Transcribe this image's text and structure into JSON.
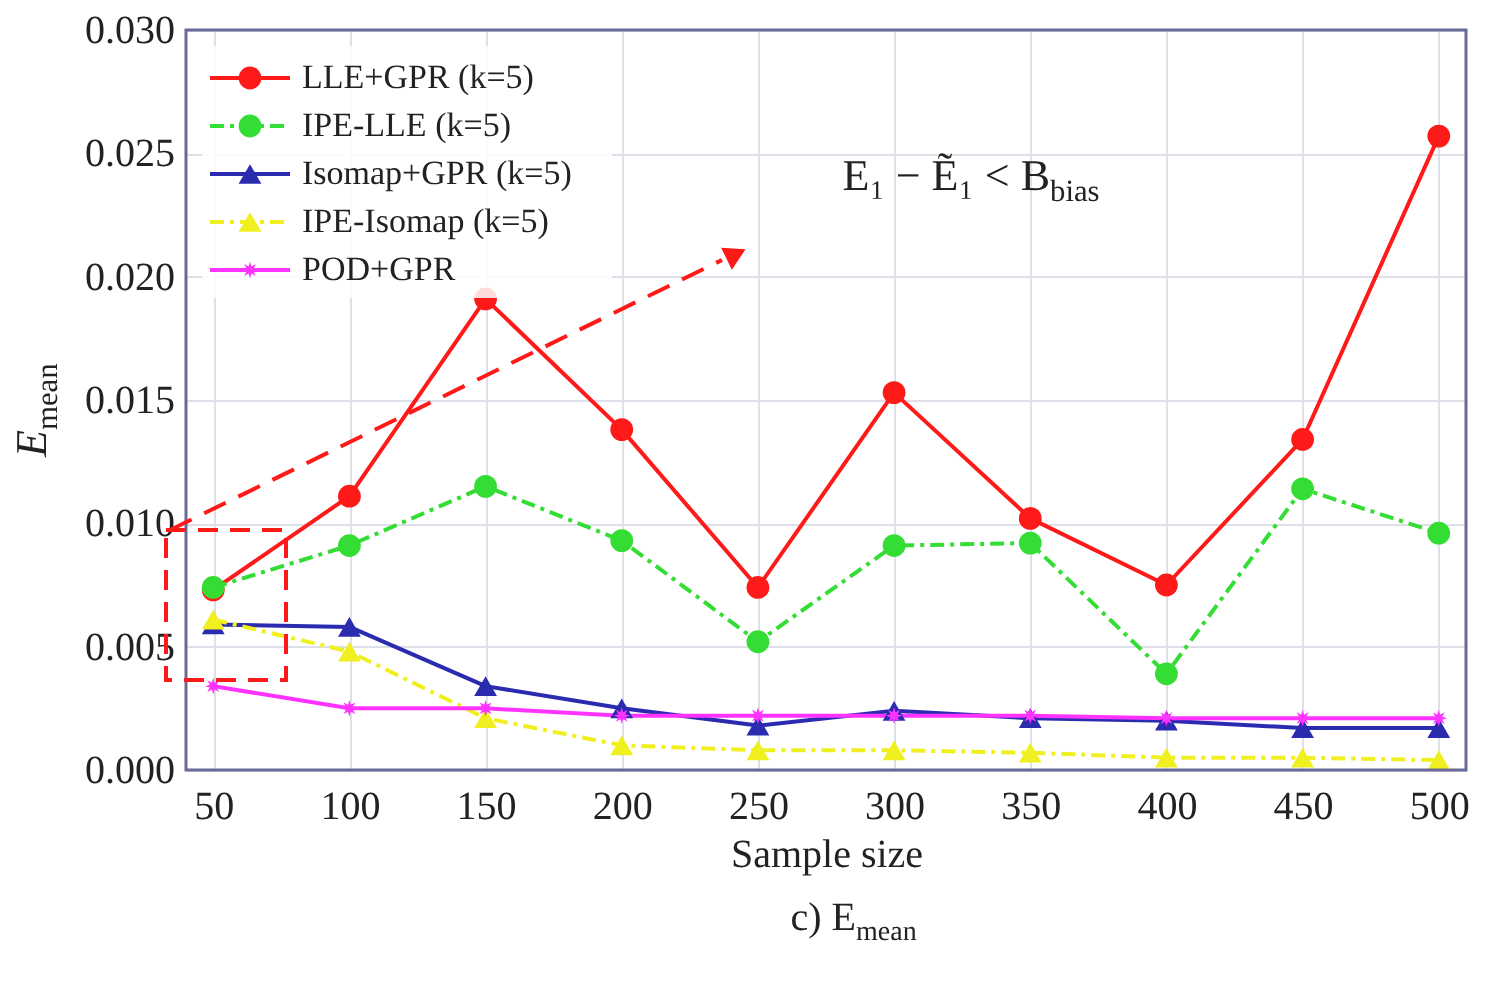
{
  "chart_data": {
    "type": "line",
    "xlabel": "Sample size",
    "ylabel": "E$_{mean}$",
    "x": [
      50,
      100,
      150,
      200,
      250,
      300,
      350,
      400,
      450,
      500
    ],
    "xlim": [
      40,
      510
    ],
    "xticks": [
      50,
      100,
      150,
      200,
      250,
      300,
      350,
      400,
      450,
      500
    ],
    "ylim": [
      0,
      0.03
    ],
    "yticks": [
      {
        "value": 0,
        "label": "0.000"
      },
      {
        "value": 0.005,
        "label": "0.005"
      },
      {
        "value": 0.01,
        "label": "0.010"
      },
      {
        "value": 0.015,
        "label": "0.015"
      },
      {
        "value": 0.02,
        "label": "0.020"
      },
      {
        "value": 0.025,
        "label": "0.025"
      },
      {
        "value": 0.03,
        "label": "0.030"
      }
    ],
    "grid": true,
    "legend": "top left",
    "series": [
      {
        "name": "LLE+GPR (k=5)",
        "color": "#ff1a1a",
        "marker": "circle",
        "line_style": "solid",
        "values": [
          0.0073,
          0.0111,
          0.0191,
          0.0138,
          0.0074,
          0.0153,
          0.0102,
          0.0075,
          0.0134,
          0.0257
        ]
      },
      {
        "name": "IPE-LLE (k=5)",
        "color": "#33dd33",
        "marker": "circle",
        "line_style": "dashed",
        "values": [
          0.0074,
          0.0091,
          0.0115,
          0.0093,
          0.0052,
          0.0091,
          0.0092,
          0.0039,
          0.0114,
          0.0096
        ]
      },
      {
        "name": "Isomap+GPR (k=5)",
        "color": "#2b2bb0",
        "marker": "triangle",
        "line_style": "solid",
        "values": [
          0.0059,
          0.0058,
          0.0034,
          0.0025,
          0.0018,
          0.0024,
          0.0021,
          0.002,
          0.0017,
          0.0017
        ]
      },
      {
        "name": "IPE-Isomap (k=5)",
        "color": "#f0f020",
        "marker": "triangle",
        "line_style": "dashed",
        "values": [
          0.0061,
          0.0048,
          0.0021,
          0.001,
          0.0008,
          0.0008,
          0.0007,
          0.0005,
          0.0005,
          0.0004
        ]
      },
      {
        "name": "POD+GPR",
        "color": "#ff33ff",
        "marker": "star",
        "line_style": "solid",
        "values": [
          0.0034,
          0.0025,
          0.0025,
          0.0022,
          0.0022,
          0.0022,
          0.0022,
          0.0021,
          0.0021,
          0.0021
        ]
      }
    ],
    "annotations": [
      "E₁ − Ẽ₁ < B$_{bias}$",
      "c)    E$_{mean}$"
    ]
  }
}
